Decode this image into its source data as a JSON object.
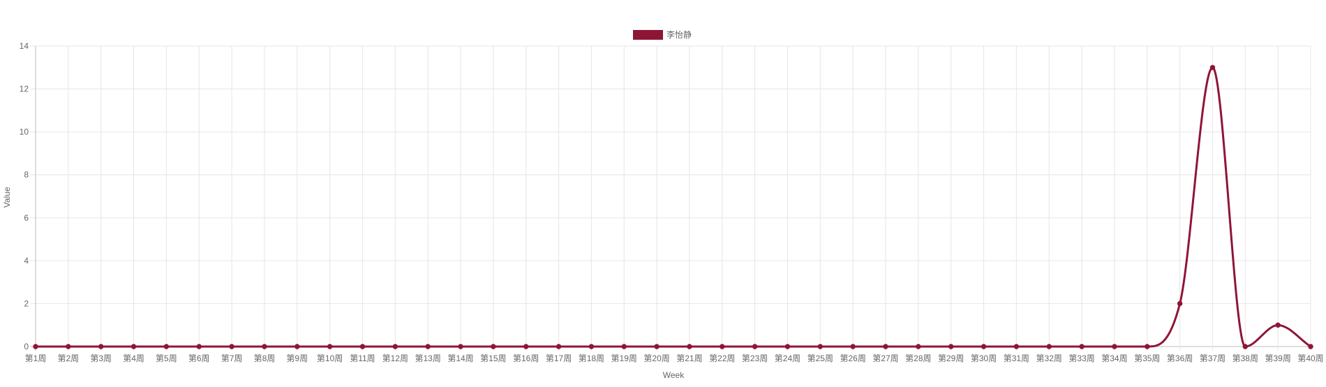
{
  "colors": {
    "series": "#8f1537",
    "grid": "#e6e6e6",
    "axis_text": "#666666"
  },
  "chart_data": {
    "type": "line",
    "title": "",
    "xlabel": "Week",
    "ylabel": "Value",
    "ylim": [
      0,
      14
    ],
    "yticks": [
      0,
      2,
      4,
      6,
      8,
      10,
      12,
      14
    ],
    "grid": true,
    "legend_position": "top-center",
    "categories": [
      "第1周",
      "第2周",
      "第3周",
      "第4周",
      "第5周",
      "第6周",
      "第7周",
      "第8周",
      "第9周",
      "第10周",
      "第11周",
      "第12周",
      "第13周",
      "第14周",
      "第15周",
      "第16周",
      "第17周",
      "第18周",
      "第19周",
      "第20周",
      "第21周",
      "第22周",
      "第23周",
      "第24周",
      "第25周",
      "第26周",
      "第27周",
      "第28周",
      "第29周",
      "第30周",
      "第31周",
      "第32周",
      "第33周",
      "第34周",
      "第35周",
      "第36周",
      "第37周",
      "第38周",
      "第39周",
      "第40周"
    ],
    "series": [
      {
        "name": "李怡静",
        "color": "#8f1537",
        "values": [
          0,
          0,
          0,
          0,
          0,
          0,
          0,
          0,
          0,
          0,
          0,
          0,
          0,
          0,
          0,
          0,
          0,
          0,
          0,
          0,
          0,
          0,
          0,
          0,
          0,
          0,
          0,
          0,
          0,
          0,
          0,
          0,
          0,
          0,
          0,
          2,
          13,
          0,
          1,
          0
        ]
      }
    ]
  }
}
